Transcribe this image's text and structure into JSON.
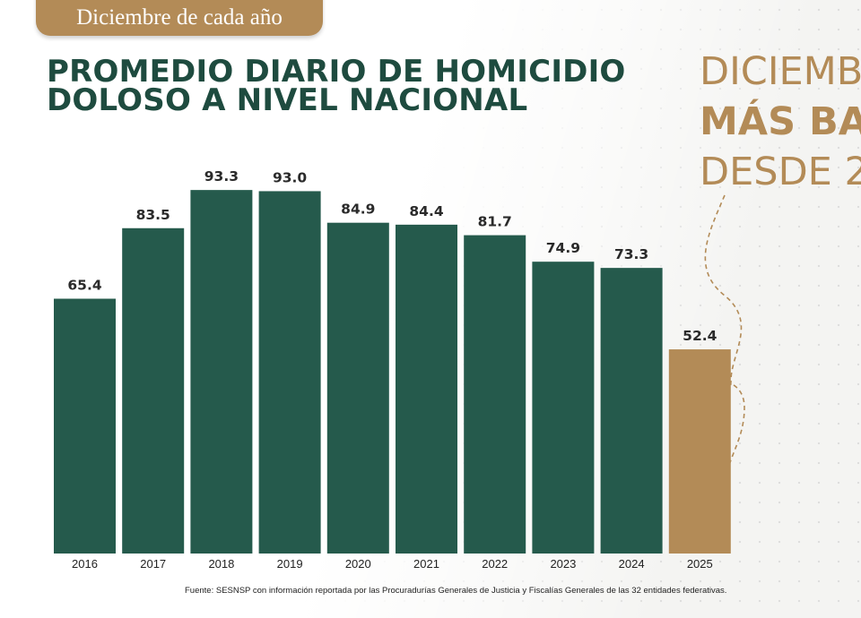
{
  "badge": "Diciembre de cada año",
  "title_lines": [
    "PROMEDIO DIARIO DE HOMICIDIO",
    "DOLOSO A NIVEL NACIONAL"
  ],
  "side_text": [
    "DICIEMB",
    "MÁS BA",
    "DESDE 2"
  ],
  "footnote": "Fuente: SESNSP con información reportada por las Procuradurías Generales de Justicia y Fiscalías Generales de las 32 entidades federativas.",
  "colors": {
    "bar": "#255a4c",
    "highlight": "#b38b57",
    "title": "#1e4b3f",
    "gold": "#b38b57"
  },
  "chart_data": {
    "type": "bar",
    "title": "PROMEDIO DIARIO DE HOMICIDIO DOLOSO A NIVEL NACIONAL",
    "xlabel": "",
    "ylabel": "",
    "ylim": [
      0,
      100
    ],
    "categories": [
      "2016",
      "2017",
      "2018",
      "2019",
      "2020",
      "2021",
      "2022",
      "2023",
      "2024",
      "2025"
    ],
    "values": [
      65.4,
      83.5,
      93.3,
      93.0,
      84.9,
      84.4,
      81.7,
      74.9,
      73.3,
      52.4
    ],
    "value_labels": [
      "65.4",
      "83.5",
      "93.3",
      "93.0",
      "84.9",
      "84.4",
      "81.7",
      "74.9",
      "73.3",
      "52.4"
    ],
    "highlight_category": "2025"
  }
}
